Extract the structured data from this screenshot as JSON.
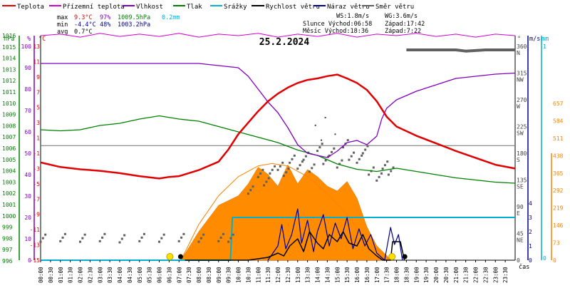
{
  "chart_data": {
    "type": "line",
    "title": "25.2.2024",
    "legend": [
      {
        "name": "Teplota",
        "color": "#e00000"
      },
      {
        "name": "Přízemní teplota",
        "color": "#d000d0"
      },
      {
        "name": "Vlhkost",
        "color": "#8000c0"
      },
      {
        "name": "Tlak",
        "color": "#008000"
      },
      {
        "name": "Srážky",
        "color": "#00b0d0"
      },
      {
        "name": "Rychlost větru",
        "color": "#000000"
      },
      {
        "name": "Náraz větru",
        "color": "#000090"
      },
      {
        "name": "Směr větru",
        "color": "#606060"
      }
    ],
    "stats": {
      "max_label": "max",
      "max_temp": "9.3°C",
      "max_hum": "97%",
      "max_press": "1009.5hPa",
      "max_rain": "0.2mm",
      "min_label": "min",
      "min_temp": "-4.4°C",
      "min_hum": "48%",
      "min_press": "1003.2hPa",
      "avg_label": "avg",
      "avg_temp": "0.7°C"
    },
    "info": {
      "ws": "WS:1.8m/s",
      "wg": "WG:3.6m/s",
      "sun_rise": "Slunce Východ:06:58",
      "sun_set": "Západ:17:42",
      "moon_rise": "Měsíc  Východ:18:36",
      "moon_set": "Západ:7:22"
    },
    "axes": {
      "hpa_unit": "hPa",
      "pct_unit": "%",
      "c_unit": "°C",
      "deg_unit": "°",
      "ms_unit": "m/s",
      "mm_unit": "mm",
      "time_label": "čas",
      "pressure_ticks": [
        "1016",
        "1015",
        "1014",
        "1013",
        "1012",
        "1011",
        "1010",
        "1009",
        "1008",
        "1007",
        "1006",
        "1005",
        "1004",
        "1003",
        "1002",
        "1001",
        "1000",
        "999",
        "998",
        "997",
        "996"
      ],
      "humidity_ticks": [
        "100",
        "90",
        "80",
        "70",
        "60",
        "50",
        "40",
        "30",
        "20",
        "10",
        "0"
      ],
      "temp_ticks": [
        "13",
        "11",
        "9",
        "7",
        "5",
        "3",
        "1",
        "-1",
        "-3",
        "-5",
        "-7",
        "-9",
        "-11",
        "-13",
        "-15"
      ],
      "dir_ticks": [
        "360",
        "N",
        "315",
        "NW",
        "270",
        "W",
        "225",
        "SW",
        "180",
        "S",
        "135",
        "SE",
        "90",
        "E",
        "45",
        "NE",
        "0"
      ],
      "wind_ticks": [
        "4",
        "3",
        "2",
        "1",
        "0"
      ],
      "rain_ticks": [
        "1",
        "0"
      ],
      "solar_ticks": [
        "657",
        "584",
        "511",
        "438",
        "365",
        "292",
        "219",
        "146",
        "73",
        "0"
      ],
      "time_ticks": [
        "00:00",
        "00:30",
        "01:00",
        "01:30",
        "02:00",
        "02:30",
        "03:00",
        "03:30",
        "04:00",
        "04:30",
        "05:00",
        "05:30",
        "06:00",
        "06:30",
        "07:00",
        "07:30",
        "08:00",
        "08:30",
        "09:00",
        "09:30",
        "10:00",
        "10:30",
        "11:00",
        "11:30",
        "12:00",
        "12:30",
        "13:00",
        "13:30",
        "14:00",
        "14:30",
        "15:00",
        "15:30",
        "16:00",
        "16:30",
        "17:00",
        "17:30",
        "18:00",
        "18:30",
        "19:00",
        "19:30",
        "20:00",
        "20:30",
        "21:00",
        "21:30",
        "22:00",
        "22:30",
        "23:00",
        "23:30"
      ]
    },
    "series": {
      "temperature_c": [
        [
          0,
          -2.2
        ],
        [
          1,
          -2.8
        ],
        [
          2,
          -3.1
        ],
        [
          3,
          -3.3
        ],
        [
          4,
          -3.6
        ],
        [
          5,
          -4.0
        ],
        [
          6,
          -4.3
        ],
        [
          6.5,
          -4.1
        ],
        [
          7,
          -4.0
        ],
        [
          8,
          -3.2
        ],
        [
          9,
          -2.1
        ],
        [
          9.5,
          -0.5
        ],
        [
          10,
          1.5
        ],
        [
          10.5,
          3.0
        ],
        [
          11,
          4.5
        ],
        [
          11.5,
          5.8
        ],
        [
          12,
          6.8
        ],
        [
          12.5,
          7.6
        ],
        [
          13,
          8.2
        ],
        [
          13.5,
          8.6
        ],
        [
          14,
          8.8
        ],
        [
          14.5,
          9.1
        ],
        [
          15,
          9.3
        ],
        [
          15.5,
          8.8
        ],
        [
          16,
          8.2
        ],
        [
          16.5,
          7.3
        ],
        [
          17,
          5.8
        ],
        [
          17.5,
          3.8
        ],
        [
          18,
          2.5
        ],
        [
          19,
          1.3
        ],
        [
          20,
          0.3
        ],
        [
          21,
          -0.7
        ],
        [
          22,
          -1.6
        ],
        [
          23,
          -2.5
        ],
        [
          24,
          -3.0
        ]
      ],
      "humidity_pct": [
        [
          0,
          92
        ],
        [
          6,
          92
        ],
        [
          8,
          92
        ],
        [
          9,
          91
        ],
        [
          10,
          90
        ],
        [
          10.5,
          86
        ],
        [
          11,
          80
        ],
        [
          11.5,
          74
        ],
        [
          12,
          69
        ],
        [
          12.5,
          62
        ],
        [
          13,
          54
        ],
        [
          13.5,
          50
        ],
        [
          14,
          49
        ],
        [
          14.5,
          48
        ],
        [
          15,
          51
        ],
        [
          15.5,
          55
        ],
        [
          16,
          56
        ],
        [
          16.5,
          54
        ],
        [
          17,
          58
        ],
        [
          17.25,
          66
        ],
        [
          17.5,
          71
        ],
        [
          18,
          75
        ],
        [
          19,
          79
        ],
        [
          20,
          82
        ],
        [
          21,
          85
        ],
        [
          22,
          86
        ],
        [
          23,
          87
        ],
        [
          24,
          87.5
        ]
      ],
      "pressure_hpa": [
        [
          0,
          1008.2
        ],
        [
          1,
          1008.1
        ],
        [
          2,
          1008.2
        ],
        [
          3,
          1008.6
        ],
        [
          4,
          1008.8
        ],
        [
          5,
          1009.2
        ],
        [
          6,
          1009.5
        ],
        [
          7,
          1009.2
        ],
        [
          8,
          1009.0
        ],
        [
          9,
          1008.5
        ],
        [
          10,
          1008.0
        ],
        [
          11,
          1007.5
        ],
        [
          12,
          1007.0
        ],
        [
          13,
          1006.3
        ],
        [
          14,
          1005.8
        ],
        [
          15,
          1005.0
        ],
        [
          16,
          1004.5
        ],
        [
          17,
          1004.3
        ],
        [
          18,
          1004.6
        ],
        [
          19,
          1004.3
        ],
        [
          20,
          1004.0
        ],
        [
          21,
          1003.7
        ],
        [
          22,
          1003.5
        ],
        [
          23,
          1003.3
        ],
        [
          24,
          1003.2
        ]
      ],
      "ground_temp_c": [
        [
          0,
          14.4
        ],
        [
          1,
          14.6
        ],
        [
          2,
          14.2
        ],
        [
          3,
          14.7
        ],
        [
          4,
          14.3
        ],
        [
          5,
          14.6
        ],
        [
          6,
          14.3
        ],
        [
          7,
          14.7
        ],
        [
          8,
          14.2
        ],
        [
          9,
          14.6
        ],
        [
          10,
          14.4
        ],
        [
          11,
          14.7
        ],
        [
          12,
          14.2
        ],
        [
          13,
          14.6
        ],
        [
          14,
          14.3
        ],
        [
          15,
          14.7
        ],
        [
          16,
          14.2
        ],
        [
          17,
          14.6
        ],
        [
          18,
          14.4
        ],
        [
          19,
          14.7
        ],
        [
          20,
          14.3
        ],
        [
          21,
          14.6
        ],
        [
          22,
          14.2
        ],
        [
          23,
          14.6
        ],
        [
          24,
          14.4
        ]
      ],
      "rain_total_mm": [
        [
          0,
          0
        ],
        [
          9.6,
          0
        ],
        [
          9.7,
          0.2
        ],
        [
          24,
          0.2
        ]
      ],
      "solar_wm2": [
        [
          7.1,
          0
        ],
        [
          8,
          120
        ],
        [
          9,
          230
        ],
        [
          10,
          270
        ],
        [
          10.5,
          320
        ],
        [
          11,
          390
        ],
        [
          11.5,
          360
        ],
        [
          12,
          310
        ],
        [
          12.5,
          400
        ],
        [
          13,
          320
        ],
        [
          13.5,
          380
        ],
        [
          14,
          350
        ],
        [
          14.5,
          310
        ],
        [
          15,
          290
        ],
        [
          15.5,
          330
        ],
        [
          16,
          260
        ],
        [
          16.5,
          140
        ],
        [
          17,
          60
        ],
        [
          17.5,
          20
        ],
        [
          17.7,
          0
        ]
      ],
      "clear_sky_wm2": [
        [
          7.1,
          0
        ],
        [
          8,
          150
        ],
        [
          9,
          270
        ],
        [
          10,
          350
        ],
        [
          11,
          395
        ],
        [
          11.7,
          405
        ],
        [
          12.5,
          395
        ],
        [
          13.5,
          350
        ],
        [
          14.5,
          280
        ],
        [
          15.5,
          190
        ],
        [
          16.5,
          80
        ],
        [
          17.7,
          0
        ]
      ],
      "wind_speed_ms": [
        [
          7.3,
          0
        ],
        [
          9.8,
          0
        ],
        [
          10.5,
          0
        ],
        [
          11.5,
          0.2
        ],
        [
          12,
          0.5
        ],
        [
          12.3,
          0.3
        ],
        [
          12.6,
          1.0
        ],
        [
          13,
          1.5
        ],
        [
          13.3,
          0.6
        ],
        [
          13.6,
          2.0
        ],
        [
          14,
          1.2
        ],
        [
          14.3,
          0.8
        ],
        [
          14.6,
          1.8
        ],
        [
          15,
          1.3
        ],
        [
          15.3,
          2.0
        ],
        [
          15.6,
          1.2
        ],
        [
          16,
          1.0
        ],
        [
          16.3,
          1.8
        ],
        [
          16.6,
          0.8
        ],
        [
          17,
          0.3
        ],
        [
          17.3,
          0
        ],
        [
          17.7,
          0
        ],
        [
          17.8,
          1.3
        ],
        [
          18.2,
          1.3
        ],
        [
          18.4,
          0
        ]
      ],
      "wind_gust_ms": [
        [
          11.5,
          0
        ],
        [
          12,
          1.0
        ],
        [
          12.2,
          2.5
        ],
        [
          12.4,
          0.8
        ],
        [
          12.7,
          1.8
        ],
        [
          13,
          3.6
        ],
        [
          13.2,
          1.2
        ],
        [
          13.5,
          2.8
        ],
        [
          13.8,
          0.6
        ],
        [
          14,
          2.0
        ],
        [
          14.3,
          3.2
        ],
        [
          14.6,
          1.0
        ],
        [
          14.9,
          2.6
        ],
        [
          15.2,
          1.5
        ],
        [
          15.5,
          3.0
        ],
        [
          15.8,
          0.8
        ],
        [
          16.1,
          2.2
        ],
        [
          16.4,
          1.0
        ],
        [
          16.7,
          1.8
        ],
        [
          17,
          0.5
        ],
        [
          17.4,
          0
        ],
        [
          17.7,
          2.3
        ],
        [
          17.9,
          1.1
        ],
        [
          18.1,
          1.8
        ],
        [
          18.3,
          0
        ]
      ],
      "wind_dir_deg": [
        [
          0,
          37
        ],
        [
          1,
          38
        ],
        [
          2,
          37
        ],
        [
          3,
          38
        ],
        [
          4,
          36
        ],
        [
          5,
          38
        ],
        [
          6,
          37
        ],
        [
          7,
          38
        ],
        [
          8,
          37
        ],
        [
          9,
          38
        ],
        [
          9.5,
          37
        ],
        [
          10.5,
          118
        ],
        [
          11,
          146
        ],
        [
          11.3,
          132
        ],
        [
          11.6,
          152
        ],
        [
          12,
          158
        ],
        [
          12.3,
          148
        ],
        [
          12.6,
          170
        ],
        [
          13,
          160
        ],
        [
          13.3,
          175
        ],
        [
          13.6,
          155
        ],
        [
          14,
          190
        ],
        [
          14.3,
          168
        ],
        [
          14.6,
          182
        ],
        [
          15,
          162
        ],
        [
          15.3,
          196
        ],
        [
          15.6,
          175
        ],
        [
          16,
          170
        ],
        [
          16.3,
          186
        ],
        [
          16.6,
          150
        ],
        [
          17,
          140
        ],
        [
          17.3,
          160
        ],
        [
          17.6,
          150
        ]
      ],
      "wind_dir_dots_deg": [
        [
          13.9,
          227
        ],
        [
          14.2,
          202
        ],
        [
          14.4,
          240
        ],
        [
          14.9,
          212
        ]
      ],
      "wind_dir_late_deg": [
        [
          18.5,
          354
        ],
        [
          21,
          354
        ],
        [
          21.5,
          352
        ],
        [
          22.5,
          354
        ],
        [
          24,
          354
        ]
      ]
    },
    "markers": {
      "sunrise_h": 6.97,
      "sunset_h": 17.7
    }
  }
}
